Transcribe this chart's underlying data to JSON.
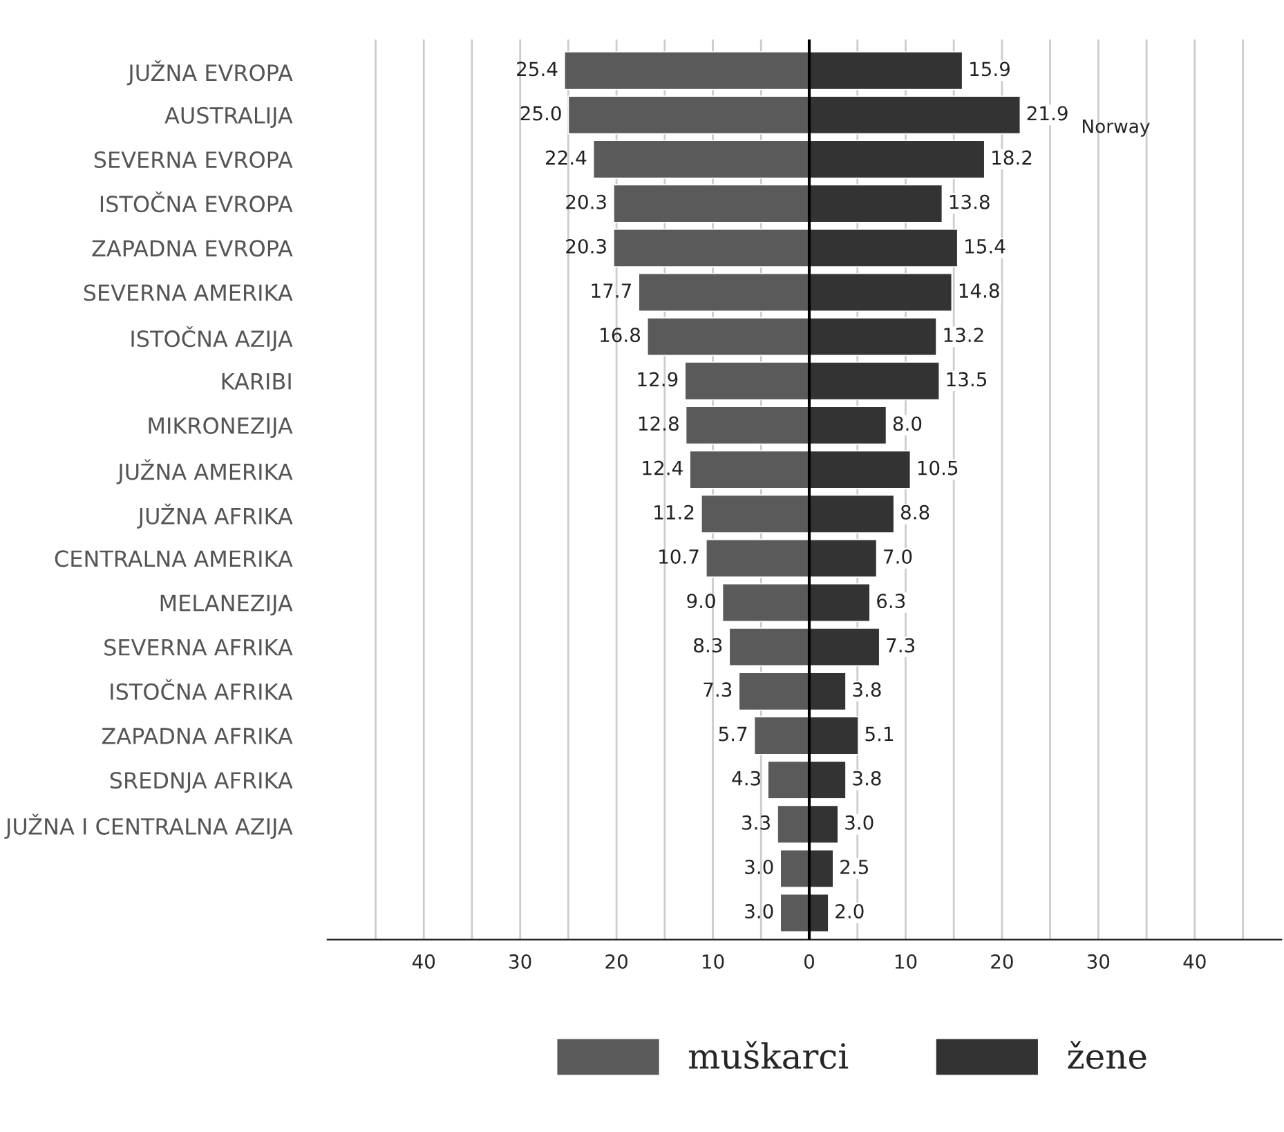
{
  "chart_data": {
    "type": "bar",
    "orientation": "horizontal",
    "categories": [
      "JUŽNA EVROPA",
      "AUSTRALIJA",
      "SEVERNA EVROPA",
      "ISTOČNA EVROPA",
      "ZAPADNA EVROPA",
      "SEVERNA AMERIKA",
      "ISTOČNA AZIJA",
      "KARIBI",
      "MIKRONEZIJA",
      "JUŽNA AMERIKA",
      "JUŽNA AFRIKA",
      "CENTRALNA AMERIKA",
      "MELANEZIJA",
      "SEVERNA AFRIKA",
      "ISTOČNA AFRIKA",
      "ZAPADNA AFRIKA",
      "SREDNJA AFRIKA",
      "JUŽNA I CENTRALNA AZIJA",
      null,
      null
    ],
    "series": [
      {
        "name": "muškarci",
        "color": "#5a5a5a",
        "values": [
          25.4,
          25.0,
          22.4,
          20.3,
          20.3,
          17.7,
          16.8,
          12.9,
          12.8,
          12.4,
          11.2,
          10.7,
          9.0,
          8.3,
          7.3,
          5.7,
          4.3,
          3.3,
          3.0,
          3.0
        ],
        "base": [
          -25.4,
          -25.0,
          -22.4,
          -20.3,
          -20.3,
          -17.7,
          -16.8,
          -12.9,
          -12.8,
          -12.4,
          -11.2,
          -10.7,
          -9.0,
          -8.3,
          -7.3,
          -5.7,
          -4.3,
          -3.3,
          -3.0,
          -3.0
        ],
        "value_labels": [
          "25.4",
          "25.0",
          "22.4",
          "20.3",
          "20.3",
          "17.7",
          "16.8",
          "12.9",
          "12.8",
          "12.4",
          "11.2",
          "10.7",
          "9.0",
          "8.3",
          "7.3",
          "5.7",
          "4.3",
          "3.3",
          "3.0",
          "3.0"
        ]
      },
      {
        "name": "žene",
        "color": "#333333",
        "values": [
          15.9,
          21.9,
          18.2,
          13.8,
          15.4,
          14.8,
          13.2,
          13.5,
          8.0,
          10.5,
          8.8,
          7.0,
          6.3,
          7.3,
          3.8,
          5.1,
          3.8,
          3.0,
          2.5,
          2.0
        ],
        "value_labels": [
          "15.9",
          "21.9",
          "18.2",
          "13.8",
          "15.4",
          "14.8",
          "13.2",
          "13.5",
          "8.0",
          "10.5",
          "8.8",
          "7.0",
          "6.3",
          "7.3",
          "3.8",
          "5.1",
          "3.8",
          "3.0",
          "2.5",
          "2.0"
        ]
      }
    ],
    "xlim": [
      -50,
      49
    ],
    "xticks": [
      {
        "value": -45,
        "label": null
      },
      {
        "value": -40,
        "label": "40"
      },
      {
        "value": -35,
        "label": null
      },
      {
        "value": -30,
        "label": "30"
      },
      {
        "value": -25,
        "label": null
      },
      {
        "value": -20,
        "label": "20"
      },
      {
        "value": -15,
        "label": null
      },
      {
        "value": -10,
        "label": "10"
      },
      {
        "value": -5,
        "label": null
      },
      0,
      {
        "value": 5,
        "label": null
      },
      10,
      {
        "value": 15,
        "label": null
      },
      20,
      {
        "value": 25,
        "label": null
      },
      30,
      {
        "value": 35,
        "label": null
      },
      40,
      {
        "value": 45,
        "label": null
      }
    ],
    "grid": "x",
    "ref_lines": [
      {
        "axis": "x",
        "value": 0,
        "color": "#000000"
      }
    ],
    "annotations": [
      "Norway"
    ],
    "legend": "bottom"
  }
}
